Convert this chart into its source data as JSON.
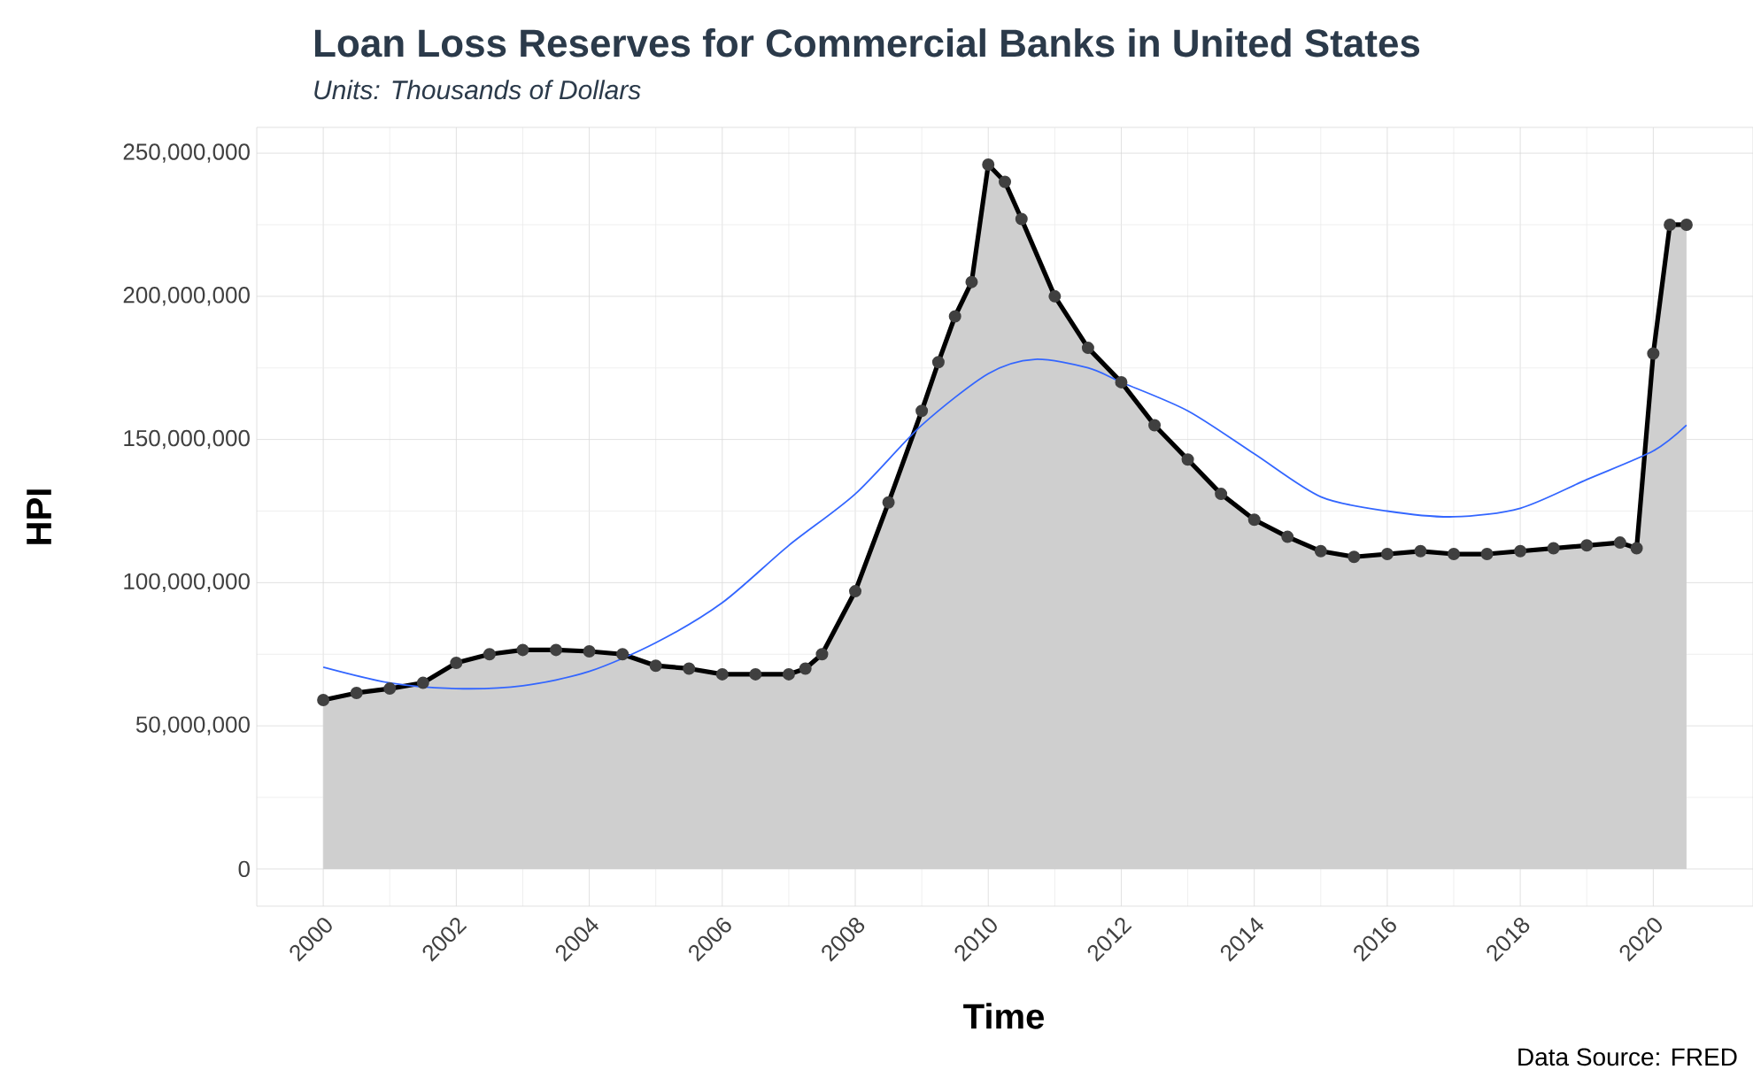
{
  "chart_data": {
    "type": "area",
    "title": "Loan Loss Reserves for Commercial Banks in United States",
    "subtitle": "Units:  Thousands of Dollars",
    "xlabel": "Time",
    "ylabel": "HPI",
    "annotations": [
      "Data Source: FRED"
    ],
    "xlim": [
      1999,
      2021.5
    ],
    "ylim": [
      -13000000,
      259000000
    ],
    "xticks": [
      2000,
      2002,
      2004,
      2006,
      2008,
      2010,
      2012,
      2014,
      2016,
      2018,
      2020
    ],
    "yticks": [
      {
        "value": 0,
        "label": "0"
      },
      {
        "value": 50000000,
        "label": "50,000,000"
      },
      {
        "value": 100000000,
        "label": "100,000,000"
      },
      {
        "value": 150000000,
        "label": "150,000,000"
      },
      {
        "value": 200000000,
        "label": "200,000,000"
      },
      {
        "value": 250000000,
        "label": "250,000,000"
      }
    ],
    "grid": true,
    "series": [
      {
        "color": "#000000",
        "marker": "circle",
        "x": [
          2000,
          2000.5,
          2001,
          2001.5,
          2002,
          2002.5,
          2003,
          2003.5,
          2004,
          2004.5,
          2005,
          2005.5,
          2006,
          2006.5,
          2007,
          2007.25,
          2007.5,
          2008,
          2008.5,
          2009,
          2009.25,
          2009.5,
          2009.75,
          2010,
          2010.25,
          2010.5,
          2011,
          2011.5,
          2012,
          2012.5,
          2013,
          2013.5,
          2014,
          2014.5,
          2015,
          2015.5,
          2016,
          2016.5,
          2017,
          2017.5,
          2018,
          2018.5,
          2019,
          2019.5,
          2019.75,
          2020,
          2020.25,
          2020.5
        ],
        "values": [
          59000000,
          61500000,
          63000000,
          65000000,
          72000000,
          75000000,
          76500000,
          76500000,
          76000000,
          75000000,
          71000000,
          70000000,
          68000000,
          68000000,
          68000000,
          70000000,
          75000000,
          97000000,
          128000000,
          160000000,
          177000000,
          193000000,
          205000000,
          246000000,
          240000000,
          227000000,
          200000000,
          182000000,
          170000000,
          155000000,
          143000000,
          131000000,
          122000000,
          116000000,
          111000000,
          109000000,
          110000000,
          111000000,
          110000000,
          110000000,
          111000000,
          112000000,
          113000000,
          114000000,
          112000000,
          180000000,
          225000000,
          225000000
        ]
      },
      {
        "type": "line",
        "color": "#3366ff",
        "marker": "none",
        "x": [
          2000,
          2001,
          2002,
          2003,
          2004,
          2005,
          2006,
          2007,
          2008,
          2009,
          2010,
          2010.7,
          2011.5,
          2012,
          2013,
          2014,
          2015,
          2016,
          2017,
          2018,
          2019,
          2020,
          2020.5
        ],
        "values": [
          70500000,
          65000000,
          63000000,
          64000000,
          69000000,
          79000000,
          93000000,
          113000000,
          131000000,
          155000000,
          173000000,
          178000000,
          175000000,
          170000000,
          160000000,
          145000000,
          130000000,
          125000000,
          123000000,
          126000000,
          136000000,
          146000000,
          155000000
        ]
      }
    ]
  }
}
